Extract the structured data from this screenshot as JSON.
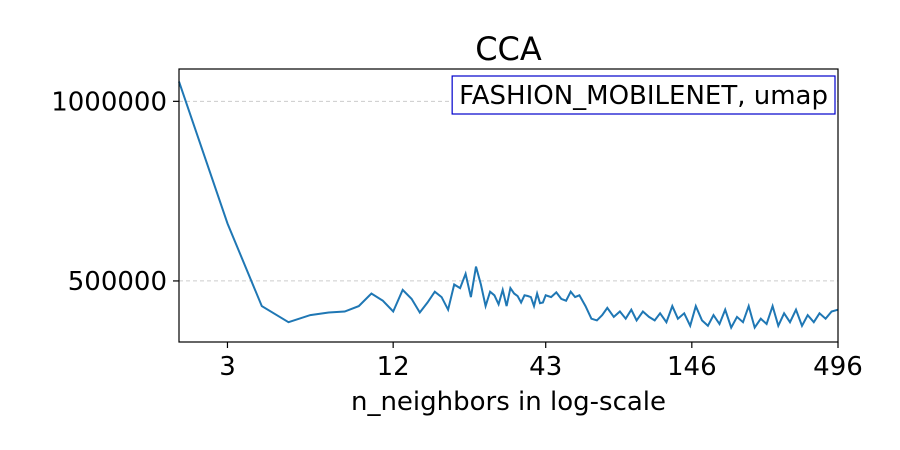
{
  "chart_data": {
    "type": "line",
    "title": "CCA",
    "xlabel": "n_neighbors in log-scale",
    "ylabel": "",
    "x_scale": "log",
    "xlim": [
      2,
      496
    ],
    "ylim": [
      330000,
      1090000
    ],
    "x_ticks": [
      3,
      12,
      43,
      146,
      496
    ],
    "x_tick_labels": [
      "3",
      "12",
      "43",
      "146",
      "496"
    ],
    "y_ticks": [
      500000,
      1000000
    ],
    "y_tick_labels": [
      "500000",
      "1000000"
    ],
    "grid": "horizontal dashed",
    "legend": {
      "text": "FASHION_MOBILENET, umap",
      "placement": "top-right"
    },
    "series": [
      {
        "color": "#1f77b4",
        "x": [
          2,
          3,
          4,
          5,
          6,
          7,
          8,
          9,
          10,
          11,
          12,
          13,
          14,
          15,
          16,
          17,
          18,
          19,
          20,
          21,
          22,
          23,
          24,
          25,
          26,
          27,
          28,
          29,
          30,
          31,
          32,
          33,
          34,
          35,
          36,
          37,
          38,
          39,
          40,
          41,
          42,
          43,
          45,
          47,
          49,
          51,
          53,
          55,
          57,
          60,
          63,
          66,
          69,
          72,
          76,
          80,
          84,
          88,
          92,
          97,
          102,
          107,
          112,
          118,
          124,
          130,
          137,
          144,
          151,
          159,
          167,
          175,
          184,
          193,
          203,
          213,
          224,
          235,
          247,
          260,
          273,
          287,
          301,
          316,
          332,
          349,
          367,
          385,
          405,
          425,
          447,
          470,
          496
        ],
        "values": [
          1055000,
          660000,
          430000,
          385000,
          405000,
          412000,
          415000,
          430000,
          465000,
          445000,
          415000,
          475000,
          450000,
          412000,
          440000,
          470000,
          455000,
          420000,
          490000,
          480000,
          520000,
          455000,
          540000,
          490000,
          430000,
          470000,
          460000,
          435000,
          475000,
          430000,
          480000,
          465000,
          458000,
          440000,
          460000,
          458000,
          455000,
          430000,
          465000,
          438000,
          440000,
          460000,
          455000,
          468000,
          450000,
          445000,
          470000,
          455000,
          460000,
          430000,
          395000,
          390000,
          405000,
          425000,
          400000,
          415000,
          395000,
          420000,
          390000,
          415000,
          400000,
          390000,
          410000,
          385000,
          430000,
          395000,
          410000,
          375000,
          430000,
          390000,
          375000,
          405000,
          380000,
          420000,
          370000,
          400000,
          385000,
          430000,
          370000,
          395000,
          380000,
          430000,
          375000,
          410000,
          385000,
          420000,
          375000,
          405000,
          385000,
          410000,
          395000,
          415000,
          420000
        ]
      }
    ]
  }
}
